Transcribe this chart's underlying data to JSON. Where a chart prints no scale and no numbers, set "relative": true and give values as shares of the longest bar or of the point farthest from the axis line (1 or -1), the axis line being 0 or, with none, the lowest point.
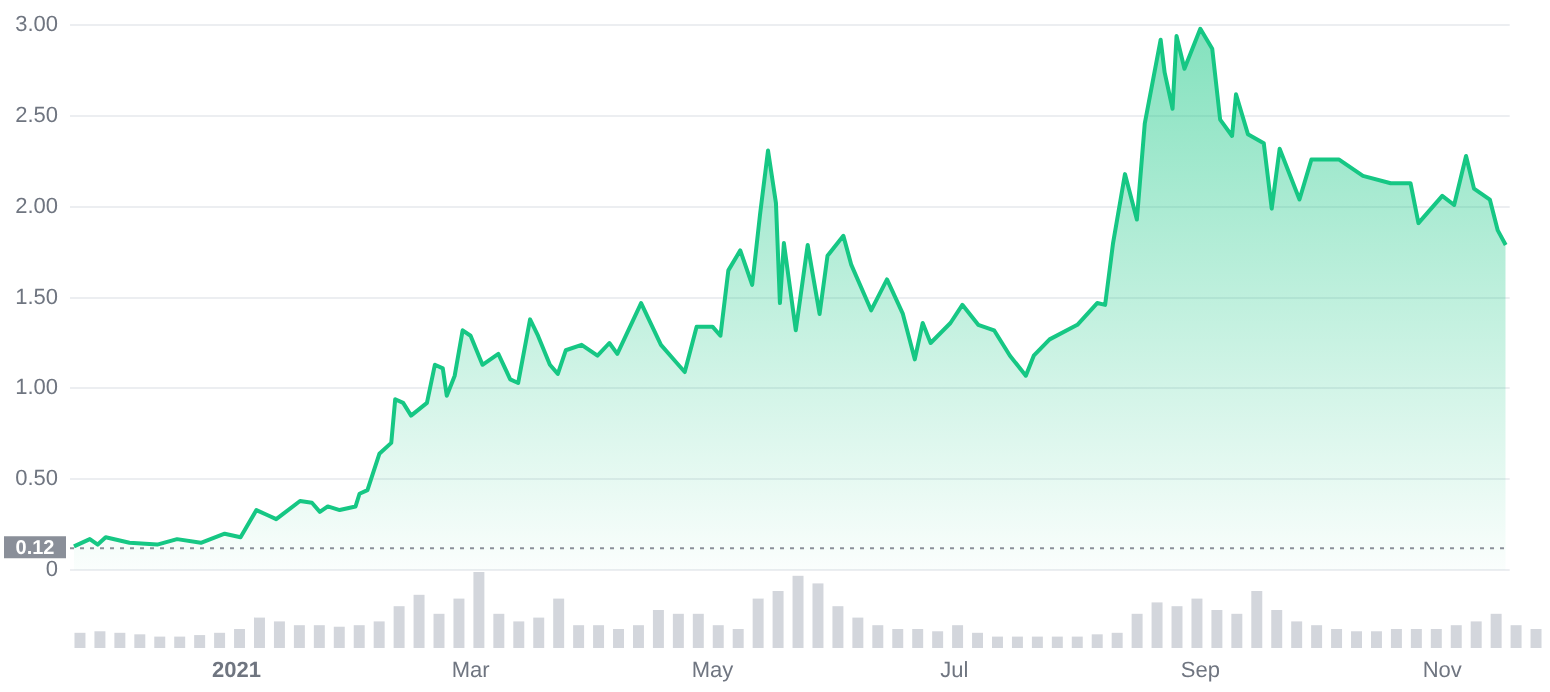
{
  "chart_data": [
    {
      "type": "area",
      "x": [
        "2020-11-21",
        "2020-11-25",
        "2020-11-27",
        "2020-11-29",
        "2020-12-05",
        "2020-12-12",
        "2020-12-17",
        "2020-12-23",
        "2020-12-29",
        "2021-01-02",
        "2021-01-06",
        "2021-01-09",
        "2021-01-11",
        "2021-01-17",
        "2021-01-20",
        "2021-01-22",
        "2021-01-24",
        "2021-01-27",
        "2021-01-31",
        "2021-02-01",
        "2021-02-03",
        "2021-02-06",
        "2021-02-09",
        "2021-02-10",
        "2021-02-12",
        "2021-02-14",
        "2021-02-18",
        "2021-02-20",
        "2021-02-22",
        "2021-02-23",
        "2021-02-25",
        "2021-02-27",
        "2021-03-01",
        "2021-03-04",
        "2021-03-08",
        "2021-03-11",
        "2021-03-13",
        "2021-03-16",
        "2021-03-18",
        "2021-03-21",
        "2021-03-23",
        "2021-03-25",
        "2021-03-29",
        "2021-04-02",
        "2021-04-05",
        "2021-04-07",
        "2021-04-13",
        "2021-04-18",
        "2021-04-22",
        "2021-04-24",
        "2021-04-27",
        "2021-05-01",
        "2021-05-03",
        "2021-05-05",
        "2021-05-08",
        "2021-05-11",
        "2021-05-13",
        "2021-05-15",
        "2021-05-17",
        "2021-05-18",
        "2021-05-19",
        "2021-05-22",
        "2021-05-25",
        "2021-05-28",
        "2021-05-30",
        "2021-06-03",
        "2021-06-05",
        "2021-06-10",
        "2021-06-14",
        "2021-06-18",
        "2021-06-21",
        "2021-06-23",
        "2021-06-25",
        "2021-06-30",
        "2021-07-03",
        "2021-07-07",
        "2021-07-11",
        "2021-07-15",
        "2021-07-19",
        "2021-07-21",
        "2021-07-25",
        "2021-08-01",
        "2021-08-06",
        "2021-08-08",
        "2021-08-10",
        "2021-08-13",
        "2021-08-16",
        "2021-08-18",
        "2021-08-22",
        "2021-08-23",
        "2021-08-25",
        "2021-08-26",
        "2021-08-28",
        "2021-09-01",
        "2021-09-04",
        "2021-09-06",
        "2021-09-09",
        "2021-09-10",
        "2021-09-13",
        "2021-09-17",
        "2021-09-19",
        "2021-09-21",
        "2021-09-26",
        "2021-09-29",
        "2021-10-06",
        "2021-10-12",
        "2021-10-19",
        "2021-10-24",
        "2021-10-26",
        "2021-11-01",
        "2021-11-04",
        "2021-11-07",
        "2021-11-09",
        "2021-11-13",
        "2021-11-15",
        "2021-11-17"
      ],
      "values": [
        0.13,
        0.17,
        0.14,
        0.18,
        0.15,
        0.14,
        0.17,
        0.15,
        0.2,
        0.18,
        0.33,
        0.3,
        0.28,
        0.38,
        0.37,
        0.32,
        0.35,
        0.33,
        0.35,
        0.42,
        0.44,
        0.64,
        0.7,
        0.94,
        0.92,
        0.85,
        0.92,
        1.13,
        1.11,
        0.96,
        1.07,
        1.32,
        1.29,
        1.13,
        1.19,
        1.05,
        1.03,
        1.38,
        1.29,
        1.13,
        1.08,
        1.21,
        1.24,
        1.18,
        1.25,
        1.19,
        1.47,
        1.24,
        1.14,
        1.09,
        1.34,
        1.34,
        1.29,
        1.65,
        1.76,
        1.57,
        1.96,
        2.31,
        2.02,
        1.47,
        1.8,
        1.32,
        1.79,
        1.41,
        1.73,
        1.84,
        1.68,
        1.43,
        1.6,
        1.41,
        1.16,
        1.36,
        1.25,
        1.36,
        1.46,
        1.35,
        1.32,
        1.18,
        1.07,
        1.18,
        1.27,
        1.35,
        1.47,
        1.46,
        1.8,
        2.18,
        1.93,
        2.46,
        2.92,
        2.74,
        2.54,
        2.94,
        2.76,
        2.98,
        2.87,
        2.48,
        2.39,
        2.62,
        2.4,
        2.35,
        1.99,
        2.32,
        2.04,
        2.26,
        2.26,
        2.17,
        2.13,
        2.13,
        1.91,
        2.06,
        2.01,
        2.28,
        2.1,
        2.04,
        1.87,
        1.79
      ],
      "color": "#16c784",
      "marker": "none",
      "xlim": [
        "2020-11-20",
        "2021-11-18"
      ],
      "xticks": [
        {
          "value": "2021-01-01",
          "label": "2021"
        },
        {
          "value": "2021-03-01",
          "label": "Mar"
        },
        {
          "value": "2021-05-01",
          "label": "May"
        },
        {
          "value": "2021-07-01",
          "label": "Jul"
        },
        {
          "value": "2021-09-01",
          "label": "Sep"
        },
        {
          "value": "2021-11-01",
          "label": "Nov"
        }
      ],
      "ylim": [
        0,
        3
      ],
      "yticks": [
        0,
        {
          "value": 0.5,
          "label": "0.50"
        },
        {
          "value": 1,
          "label": "1.00"
        },
        {
          "value": 1.5,
          "label": "1.50"
        },
        {
          "value": 2,
          "label": "2.00"
        },
        {
          "value": 2.5,
          "label": "2.50"
        },
        {
          "value": 3,
          "label": "3.00"
        }
      ],
      "grid": "y",
      "legend": false,
      "ref_lines": [
        {
          "axis": "y",
          "value": 0.12,
          "label": "0.12",
          "color": "#8a8f99",
          "line_style": "dotted"
        }
      ]
    },
    {
      "type": "bar",
      "relative": true,
      "tick_labels": false,
      "legend": false,
      "color": "#d3d6dc",
      "categories": [
        null,
        null,
        null,
        null,
        null,
        null,
        null,
        null,
        null,
        null,
        null,
        null,
        null,
        null,
        null,
        null,
        null,
        null,
        null,
        null,
        null,
        null,
        null,
        null,
        null,
        null,
        null,
        null,
        null,
        null,
        null,
        null,
        null,
        null,
        null,
        null,
        null,
        null,
        null,
        null,
        null,
        null,
        null,
        null,
        null,
        null,
        null,
        null,
        null,
        null,
        null,
        null,
        null,
        null,
        null,
        null,
        null,
        null,
        null,
        null,
        null,
        null,
        null,
        null,
        null,
        null,
        null,
        null,
        null,
        null,
        null,
        null,
        null,
        null
      ],
      "values": [
        0.2,
        0.22,
        0.2,
        0.18,
        0.15,
        0.15,
        0.17,
        0.2,
        0.25,
        0.4,
        0.35,
        0.3,
        0.3,
        0.28,
        0.3,
        0.35,
        0.55,
        0.7,
        0.45,
        0.65,
        1.0,
        0.45,
        0.35,
        0.4,
        0.65,
        0.3,
        0.3,
        0.25,
        0.3,
        0.5,
        0.45,
        0.45,
        0.3,
        0.25,
        0.65,
        0.75,
        0.95,
        0.85,
        0.55,
        0.4,
        0.3,
        0.25,
        0.25,
        0.22,
        0.3,
        0.2,
        0.15,
        0.15,
        0.15,
        0.15,
        0.15,
        0.18,
        0.2,
        0.45,
        0.6,
        0.55,
        0.65,
        0.5,
        0.45,
        0.75,
        0.5,
        0.35,
        0.3,
        0.25,
        0.22,
        0.22,
        0.25,
        0.25,
        0.25,
        0.3,
        0.35,
        0.45,
        0.3,
        0.25
      ]
    }
  ]
}
